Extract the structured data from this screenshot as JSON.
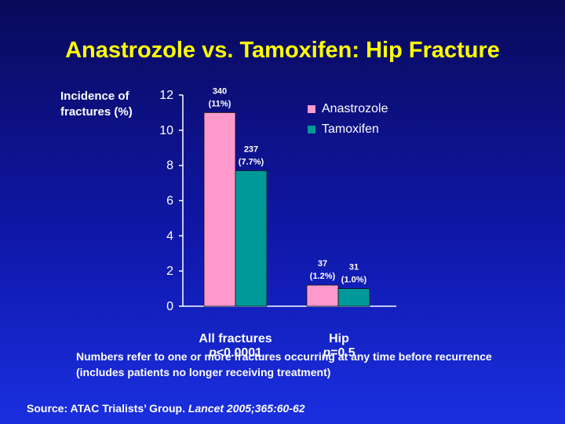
{
  "title": "Anastrozole vs. Tamoxifen: Hip Fracture",
  "colors": {
    "anastrozole": "#ff99cc",
    "tamoxifen": "#009999",
    "title": "#ffff00"
  },
  "chart_data": {
    "type": "bar",
    "ylabel_line1": "Incidence of",
    "ylabel_line2": "fractures (%)",
    "ylim": [
      0,
      12
    ],
    "yticks": [
      "0",
      "2",
      "4",
      "6",
      "8",
      "10",
      "12"
    ],
    "categories": [
      "All fractures",
      "Hip"
    ],
    "category_notes": [
      {
        "p": "p",
        "rest": "<0.0001"
      },
      {
        "p": "p",
        "rest": "=0.5"
      }
    ],
    "series": [
      {
        "name": "Anastrozole",
        "values": [
          11,
          1.2
        ],
        "labels": [
          [
            "340",
            "(11%)"
          ],
          [
            "37",
            "(1.2%)"
          ]
        ]
      },
      {
        "name": "Tamoxifen",
        "values": [
          7.7,
          1.0
        ],
        "labels": [
          [
            "237",
            "(7.7%)"
          ],
          [
            "31",
            "(1.0%)"
          ]
        ]
      }
    ],
    "legend": "top-right"
  },
  "note": "Numbers refer to one or more fractures occurring at any time before recurrence (includes patients no longer receiving treatment)",
  "source": {
    "prefix": "Source: ATAC Trialists’ Group. ",
    "citation": "Lancet 2005;365:60-62"
  }
}
